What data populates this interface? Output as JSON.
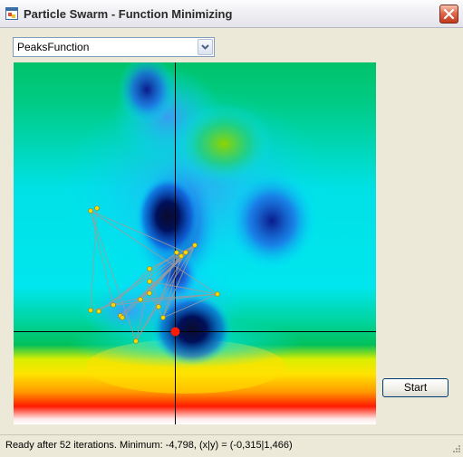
{
  "window": {
    "title": "Particle Swarm - Function Minimizing",
    "icon": "app-window-icon",
    "close_icon": "close-icon"
  },
  "function_select": {
    "selected": "PeaksFunction",
    "icon": "chevron-down-icon"
  },
  "plot": {
    "colormap": [
      "#ffffff",
      "#ff0000",
      "#ffa500",
      "#ffff00",
      "#00c84a",
      "#00e5ff",
      "#00008b",
      "#111111"
    ],
    "minimum_marker_color": "#ff0000",
    "particle_color": "#ffd700",
    "line_color": "#9a9a9a",
    "crosshair_color": "#000000"
  },
  "start_button": {
    "label": "Start"
  },
  "status": {
    "text": "Ready after 52 iterations. Minimum: -4,798, (x|y) = (-0,315|1,466)"
  }
}
